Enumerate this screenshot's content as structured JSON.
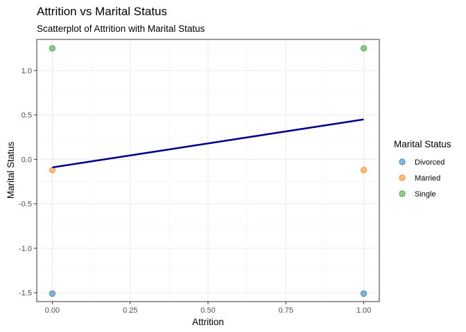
{
  "chart_data": {
    "type": "scatter",
    "title": "Attrition vs Marital Status",
    "subtitle": "Scatterplot of Attrition with Marital Status",
    "xlabel": "Attrition",
    "ylabel": "Marital Status",
    "xlim": [
      -0.05,
      1.05
    ],
    "ylim": [
      -1.6,
      1.35
    ],
    "x_ticks": [
      0.0,
      0.25,
      0.5,
      0.75,
      1.0
    ],
    "x_tick_labels": [
      "0.00",
      "0.25",
      "0.50",
      "0.75",
      "1.00"
    ],
    "y_ticks": [
      -1.5,
      -1.0,
      -0.5,
      0.0,
      0.5,
      1.0
    ],
    "y_tick_labels": [
      "-1.5",
      "-1.0",
      "-0.5",
      "0.0",
      "0.5",
      "1.0"
    ],
    "grid": true,
    "legend": {
      "title": "Marital Status",
      "position": "right",
      "items": [
        "Divorced",
        "Married",
        "Single"
      ]
    },
    "series": [
      {
        "name": "Divorced",
        "color": "#1f77b4",
        "points": [
          [
            0,
            -1.51
          ],
          [
            1,
            -1.51
          ]
        ]
      },
      {
        "name": "Married",
        "color": "#ff7f0e",
        "points": [
          [
            0,
            -0.12
          ],
          [
            1,
            -0.12
          ]
        ]
      },
      {
        "name": "Single",
        "color": "#2ca02c",
        "points": [
          [
            0,
            1.25
          ],
          [
            1,
            1.25
          ]
        ]
      }
    ],
    "trend_line": {
      "color": "#00008b",
      "points": [
        [
          0,
          -0.09
        ],
        [
          1,
          0.45
        ]
      ]
    }
  }
}
